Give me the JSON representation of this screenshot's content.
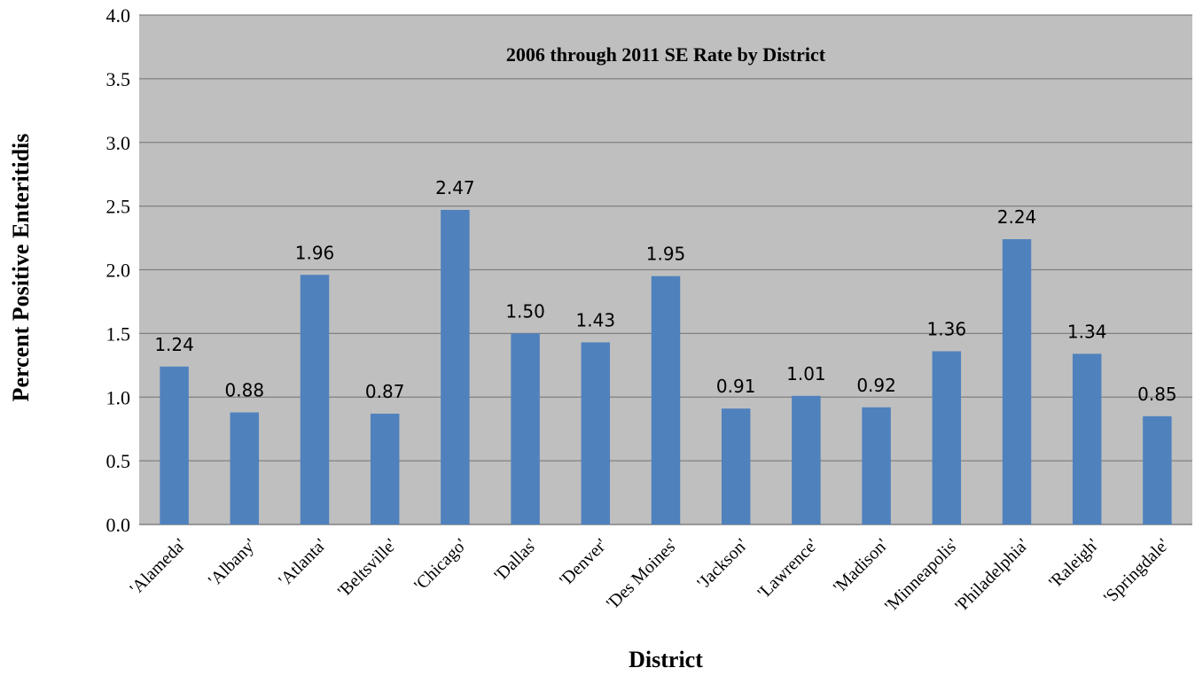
{
  "chart_data": {
    "type": "bar",
    "title": "2006 through 2011 SE Rate by District",
    "xlabel": "District",
    "ylabel": "Percent Positive Enteritidis",
    "ylim": [
      0,
      4.0
    ],
    "yticks": [
      "0.0",
      "0.5",
      "1.0",
      "1.5",
      "2.0",
      "2.5",
      "3.0",
      "3.5",
      "4.0"
    ],
    "grid": true,
    "legend": "none",
    "categories": [
      "'Alameda'",
      "'Albany'",
      "'Atlanta'",
      "'Beltsville'",
      "'Chicago'",
      "'Dallas'",
      "'Denver'",
      "'Des Moines'",
      "'Jackson'",
      "'Lawrence'",
      "'Madison'",
      "'Minneapolis'",
      "'Philadelphia'",
      "'Raleigh'",
      "'Springdale'"
    ],
    "values": [
      1.24,
      0.88,
      1.96,
      0.87,
      2.47,
      1.5,
      1.43,
      1.95,
      0.91,
      1.01,
      0.92,
      1.36,
      2.24,
      1.34,
      0.85
    ],
    "data_labels": [
      "1.24",
      "0.88",
      "1.96",
      "0.87",
      "2.47",
      "1.50",
      "1.43",
      "1.95",
      "0.91",
      "1.01",
      "0.92",
      "1.36",
      "2.24",
      "1.34",
      "0.85"
    ],
    "colors": {
      "bar": "#4f81bd",
      "plot_background": "#bfbfbf",
      "gridline": "#808080"
    }
  }
}
